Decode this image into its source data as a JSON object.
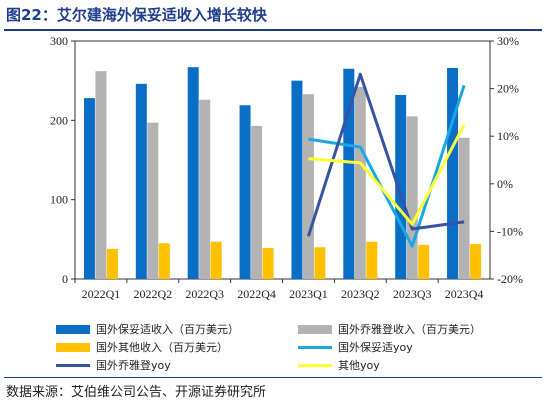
{
  "title": "图22：艾尔建海外保妥适收入增长较快",
  "source": "数据来源：艾伯维公司公告、开源证券研究所",
  "chart_data": {
    "type": "bar",
    "categories": [
      "2022Q1",
      "2022Q2",
      "2022Q3",
      "2022Q4",
      "2023Q1",
      "2023Q2",
      "2023Q3",
      "2023Q4"
    ],
    "y_left": {
      "min": 0,
      "max": 300,
      "ticks": [
        "0",
        "100",
        "200",
        "300"
      ]
    },
    "y_right": {
      "min": -20,
      "max": 30,
      "ticks": [
        "-20%",
        "-10%",
        "0%",
        "10%",
        "20%",
        "30%"
      ]
    },
    "bar_series": [
      {
        "name": "国外保妥适收入（百万美元）",
        "color": "#0a6ec7",
        "values": [
          228,
          246,
          267,
          219,
          250,
          265,
          232,
          266
        ]
      },
      {
        "name": "国外乔雅登收入（百万美元）",
        "color": "#b3b3b3",
        "values": [
          262,
          197,
          226,
          193,
          233,
          242,
          205,
          178
        ]
      },
      {
        "name": "国外其他收入（百万美元）",
        "color": "#ffc000",
        "values": [
          38,
          45,
          47,
          39,
          40,
          47,
          43,
          44
        ]
      }
    ],
    "line_series": [
      {
        "name": "国外保妥适yoy",
        "color": "#1aa7e6",
        "axis": "right",
        "values": [
          null,
          null,
          null,
          null,
          9.4,
          7.7,
          -13.1,
          20.7
        ]
      },
      {
        "name": "国外乔雅登yoy",
        "color": "#3554a4",
        "axis": "right",
        "values": [
          null,
          null,
          null,
          null,
          -11.0,
          23.0,
          -9.5,
          -8.0
        ]
      },
      {
        "name": "其他yoy",
        "color": "#ffff33",
        "axis": "right",
        "values": [
          null,
          null,
          null,
          null,
          5.3,
          4.4,
          -8.5,
          12.4
        ]
      }
    ],
    "grid": false,
    "legend_position": "bottom"
  }
}
